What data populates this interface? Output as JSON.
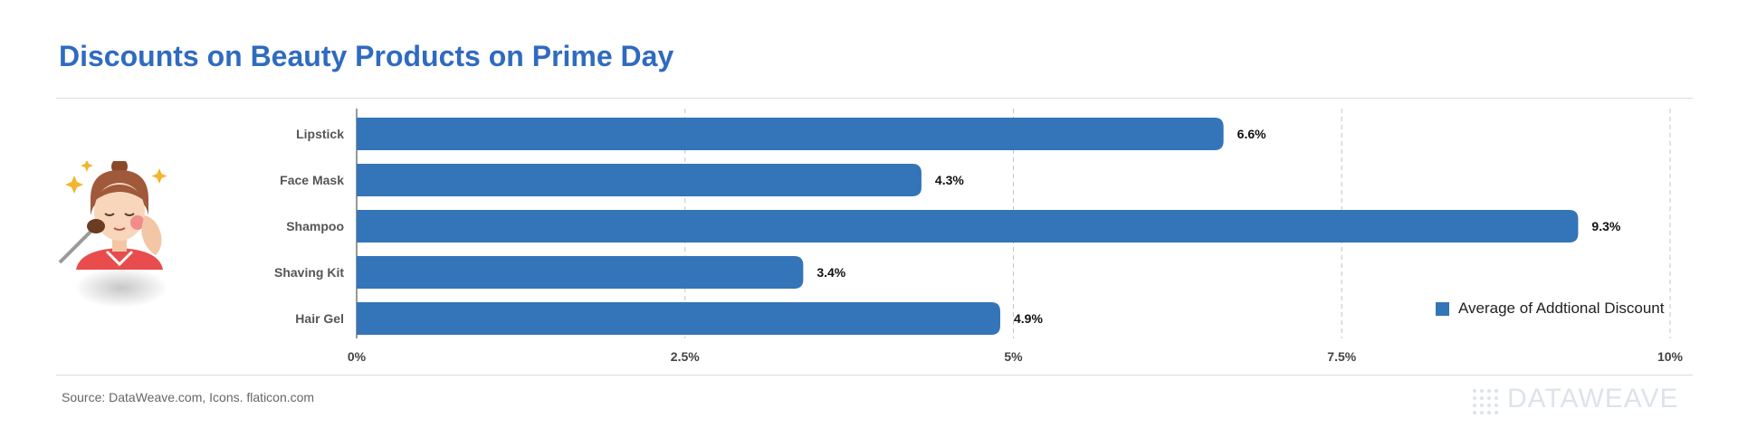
{
  "title": "Discounts on Beauty Products on Prime Day",
  "source": "Source: DataWeave.com, Icons. flaticon.com",
  "brand": "DATAWEAVE",
  "colors": {
    "bar": "#3474b8",
    "title": "#2f6bbf",
    "grid": "#c4c4c4"
  },
  "illustration_icon": "woman-applying-makeup-icon",
  "chart_data": {
    "type": "bar",
    "orientation": "horizontal",
    "categories": [
      "Lipstick",
      "Face Mask",
      "Shampoo",
      "Shaving Kit",
      "Hair Gel"
    ],
    "series": [
      {
        "name": "Average of Addtional Discount",
        "values": [
          6.6,
          4.3,
          9.3,
          3.4,
          4.9
        ]
      }
    ],
    "value_labels": [
      "6.6%",
      "4.3%",
      "9.3%",
      "3.4%",
      "4.9%"
    ],
    "x_ticks": [
      0,
      2.5,
      5,
      7.5,
      10
    ],
    "x_tick_labels": [
      "0%",
      "2.5%",
      "5%",
      "7.5%",
      "10%"
    ],
    "xlim": [
      0,
      10
    ],
    "grid": "vertical dashed",
    "legend_position": "bottom-right"
  }
}
